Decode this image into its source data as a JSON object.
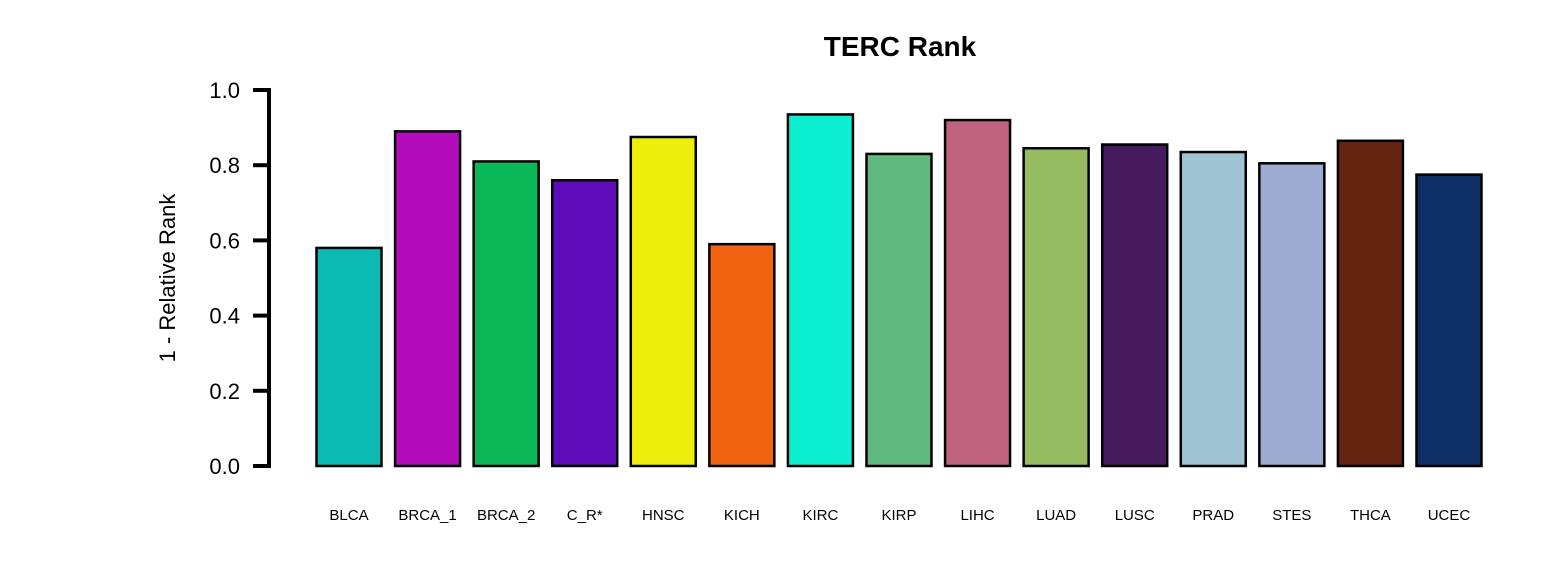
{
  "chart_data": {
    "type": "bar",
    "title": "TERC Rank",
    "xlabel": "",
    "ylabel": "1 - Relative Rank",
    "ylim": [
      0,
      1
    ],
    "yticks": [
      "0.0",
      "0.2",
      "0.4",
      "0.6",
      "0.8",
      "1.0"
    ],
    "grid": false,
    "legend": "none",
    "categories": [
      "BLCA",
      "BRCA_1",
      "BRCA_2",
      "C_R*",
      "HNSC",
      "KICH",
      "KIRC",
      "KIRP",
      "LIHC",
      "LUAD",
      "LUSC",
      "PRAD",
      "STES",
      "THCA",
      "UCEC"
    ],
    "values": [
      0.58,
      0.89,
      0.81,
      0.76,
      0.875,
      0.59,
      0.935,
      0.83,
      0.92,
      0.845,
      0.855,
      0.835,
      0.805,
      0.865,
      0.775
    ],
    "colors": [
      "#0BBBB3",
      "#B30CBA",
      "#0AB858",
      "#5E0CB9",
      "#EEEE0C",
      "#F06310",
      "#0DEFD1",
      "#60BA80",
      "#BE6280",
      "#96BC62",
      "#461C5E",
      "#A0C4D4",
      "#9EACD2",
      "#662311",
      "#0F2E66"
    ]
  }
}
